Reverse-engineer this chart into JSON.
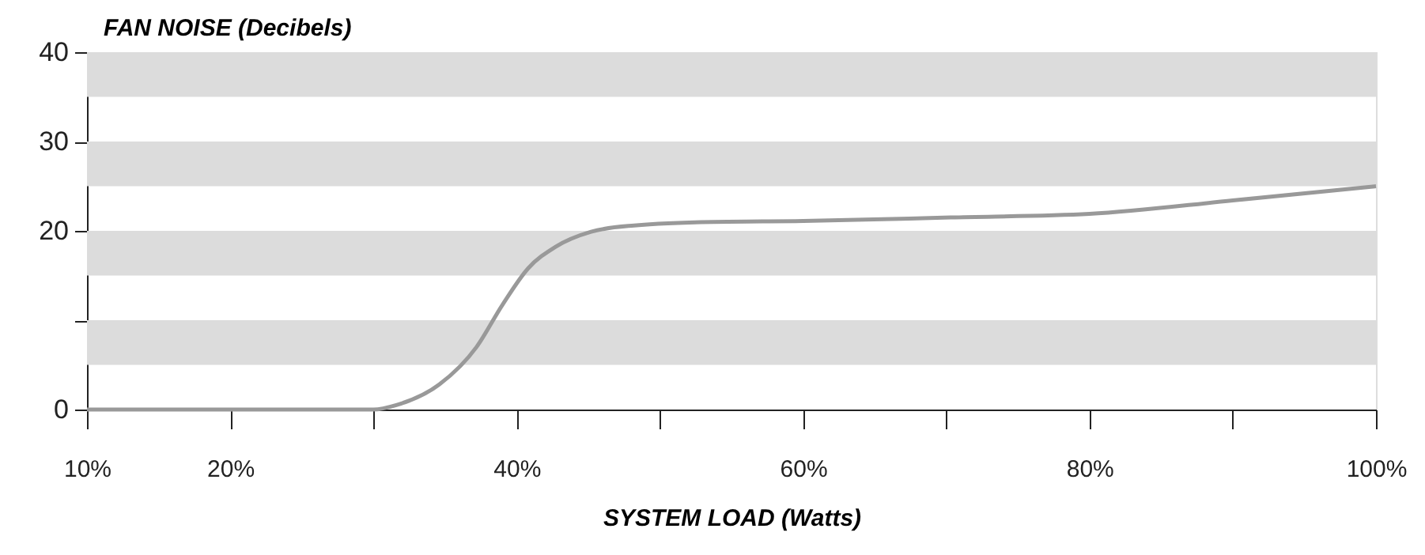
{
  "chart_data": {
    "type": "line",
    "xlabel": "SYSTEM LOAD (Watts)",
    "ylabel": "FAN NOISE  (Decibels)",
    "x": [
      10,
      20,
      30,
      31.6,
      34.6,
      37.2,
      39,
      40.8,
      42.7,
      45.2,
      48.2,
      53.7,
      60,
      70.3,
      80,
      90,
      100
    ],
    "series": [
      {
        "color": "#999999",
        "values": [
          0,
          0,
          0,
          0.5,
          2.8,
          7.0,
          11.7,
          15.8,
          18.2,
          19.9,
          20.6,
          21.0,
          21.1,
          21.5,
          21.9,
          23.4,
          25.0
        ]
      }
    ],
    "xlim": [
      10,
      100
    ],
    "xticks": [
      {
        "value": 10,
        "label": "10%"
      },
      {
        "value": 20,
        "label": "20%"
      },
      {
        "value": 30,
        "label": null
      },
      {
        "value": 40,
        "label": "40%"
      },
      {
        "value": 50,
        "label": null
      },
      {
        "value": 60,
        "label": "60%"
      },
      {
        "value": 70,
        "label": null
      },
      {
        "value": 80,
        "label": "80%"
      },
      {
        "value": 90,
        "label": null
      },
      {
        "value": 100,
        "label": "100%"
      }
    ],
    "ylim": [
      0,
      40
    ],
    "yticks": [
      0,
      {
        "value": 10,
        "label": null
      },
      20,
      30,
      40
    ],
    "bands": [
      {
        "axis": "y",
        "from": 5,
        "to": 10,
        "color": "#dcdcdc"
      },
      {
        "axis": "y",
        "from": 15,
        "to": 20,
        "color": "#dcdcdc"
      },
      {
        "axis": "y",
        "from": 25,
        "to": 30,
        "color": "#dcdcdc"
      },
      {
        "axis": "y",
        "from": 35,
        "to": 40,
        "color": "#dcdcdc"
      }
    ],
    "grid": false,
    "marker": "none",
    "line_style": "solid"
  }
}
